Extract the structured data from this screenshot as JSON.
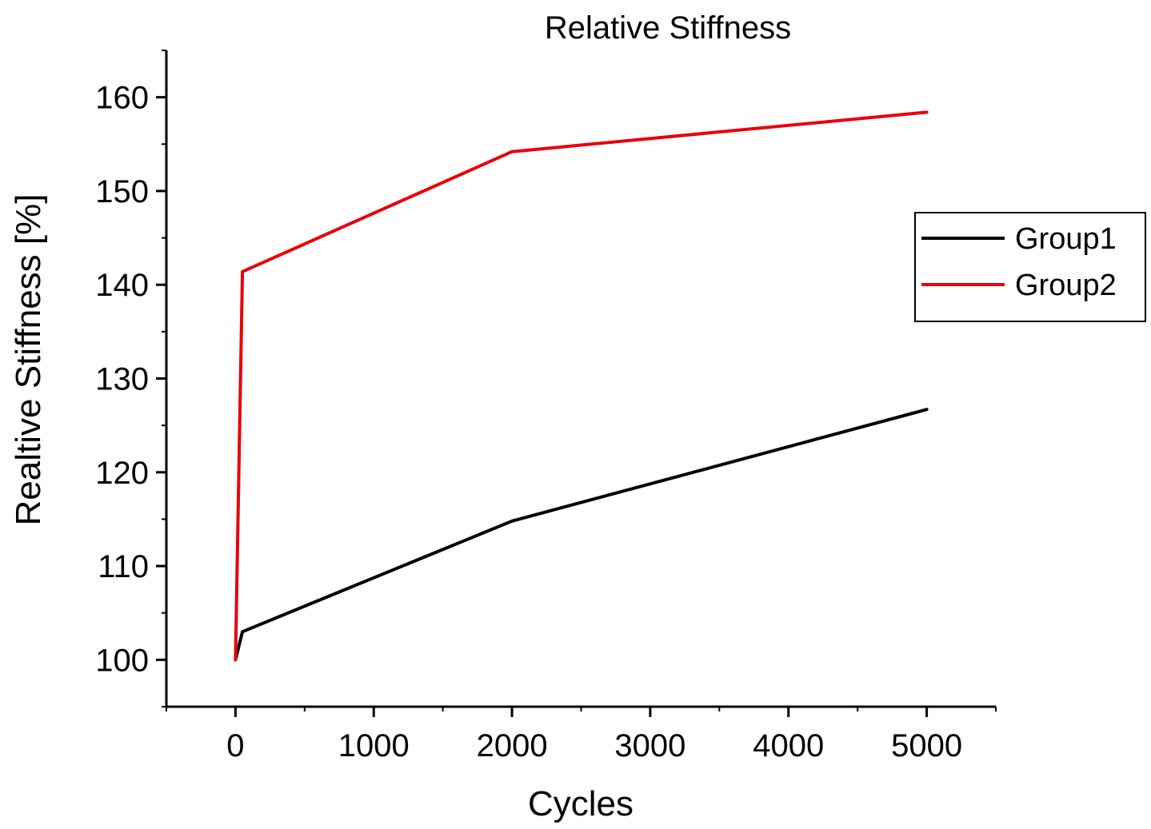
{
  "chart_data": {
    "type": "line",
    "title": "Relative Stiffness",
    "xlabel": "Cycles",
    "ylabel": "Realtive Stiffness [%]",
    "xlim": [
      -500,
      5500
    ],
    "ylim": [
      95,
      165
    ],
    "x_ticks": [
      0,
      1000,
      2000,
      3000,
      4000,
      5000
    ],
    "x_tick_labels": [
      "0",
      "1000",
      "2000",
      "3000",
      "4000",
      "5000"
    ],
    "y_ticks": [
      100,
      110,
      120,
      130,
      140,
      150,
      160
    ],
    "y_tick_labels": [
      "100",
      "110",
      "120",
      "130",
      "140",
      "150",
      "160"
    ],
    "x_minor_step": 500,
    "y_minor_step": 5,
    "grid": false,
    "legend_position": "right",
    "series": [
      {
        "name": "Group1",
        "color": "#000000",
        "x": [
          0,
          50,
          2000,
          5000
        ],
        "y": [
          100,
          103,
          114.8,
          126.7
        ]
      },
      {
        "name": "Group2",
        "color": "#e8000b",
        "x": [
          0,
          50,
          2000,
          5000
        ],
        "y": [
          100,
          141.4,
          154.2,
          158.4
        ]
      }
    ]
  }
}
